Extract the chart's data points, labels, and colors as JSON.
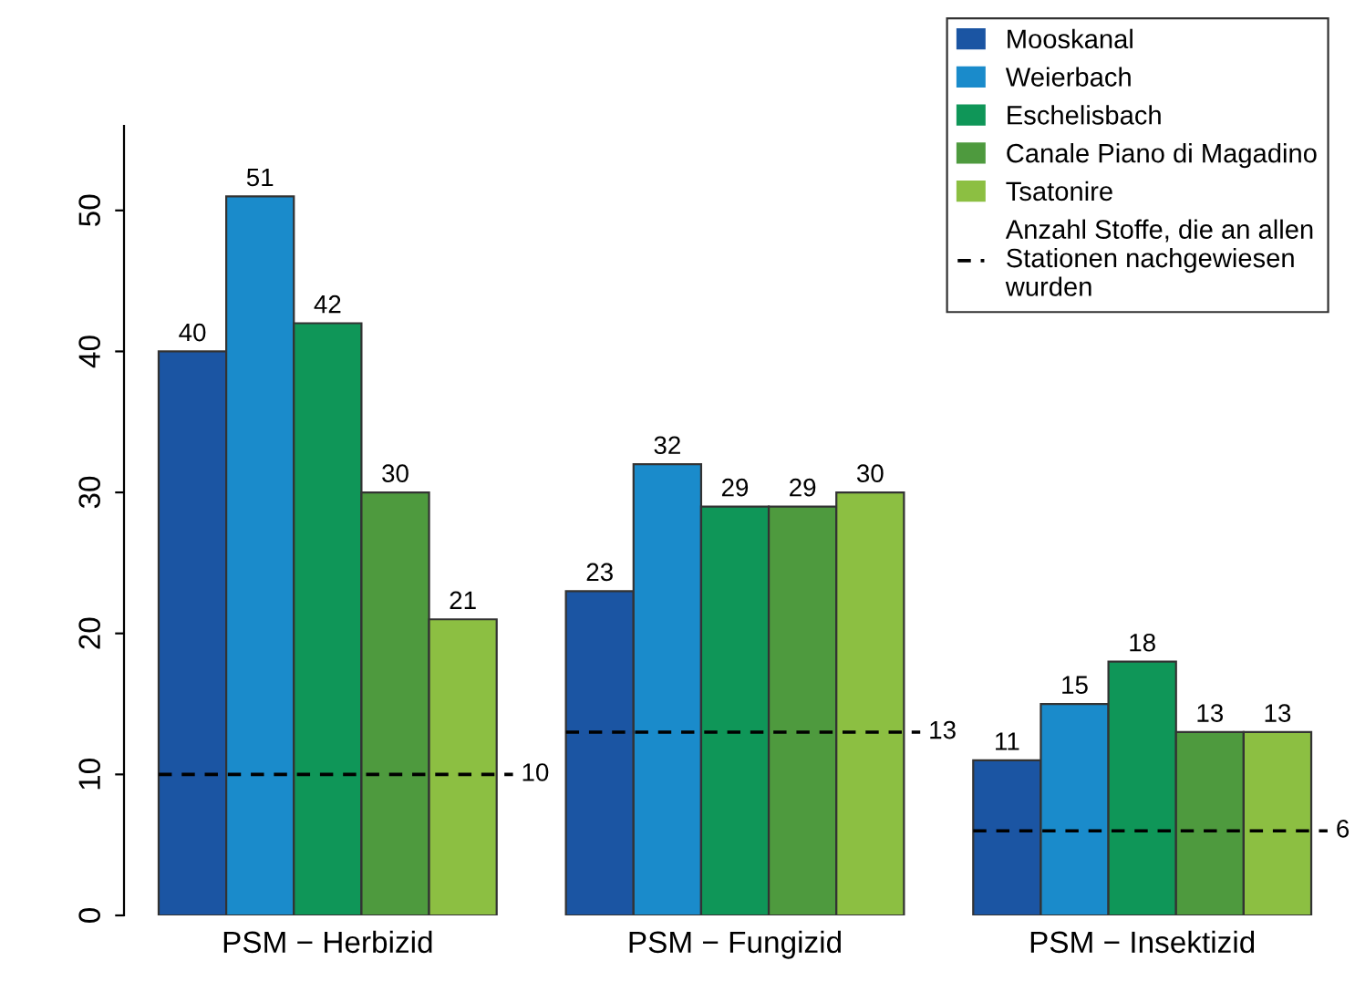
{
  "chart_data": {
    "type": "bar",
    "categories": [
      "PSM − Herbizid",
      "PSM − Fungizid",
      "PSM − Insektizid"
    ],
    "series": [
      {
        "name": "Mooskanal",
        "color": "#1b55a3",
        "values": [
          40,
          23,
          11
        ]
      },
      {
        "name": "Weierbach",
        "color": "#1a8bcb",
        "values": [
          51,
          32,
          15
        ]
      },
      {
        "name": "Eschelisbach",
        "color": "#0f9658",
        "values": [
          42,
          29,
          18
        ]
      },
      {
        "name": "Canale Piano di Magadino",
        "color": "#4e9a3e",
        "values": [
          30,
          29,
          13
        ]
      },
      {
        "name": "Tsatonire",
        "color": "#8cbf42",
        "values": [
          21,
          30,
          13
        ]
      }
    ],
    "ref_lines": [
      {
        "axis": "y",
        "value": 10,
        "label": "10",
        "color": "#000000",
        "line_style": "dashed"
      },
      {
        "axis": "y",
        "value": 13,
        "label": "13",
        "color": "#000000",
        "line_style": "dashed"
      },
      {
        "axis": "y",
        "value": 6,
        "label": "6",
        "color": "#000000",
        "line_style": "dashed"
      }
    ],
    "annotations": [
      "Anzahl Stoffe, die an allen\nStationen nachgewiesen\nwurden"
    ],
    "ylim": [
      0,
      56
    ],
    "yticks": [
      0,
      10,
      20,
      30,
      40,
      50
    ],
    "data_labels": true,
    "legend": "top right",
    "grid": false
  }
}
